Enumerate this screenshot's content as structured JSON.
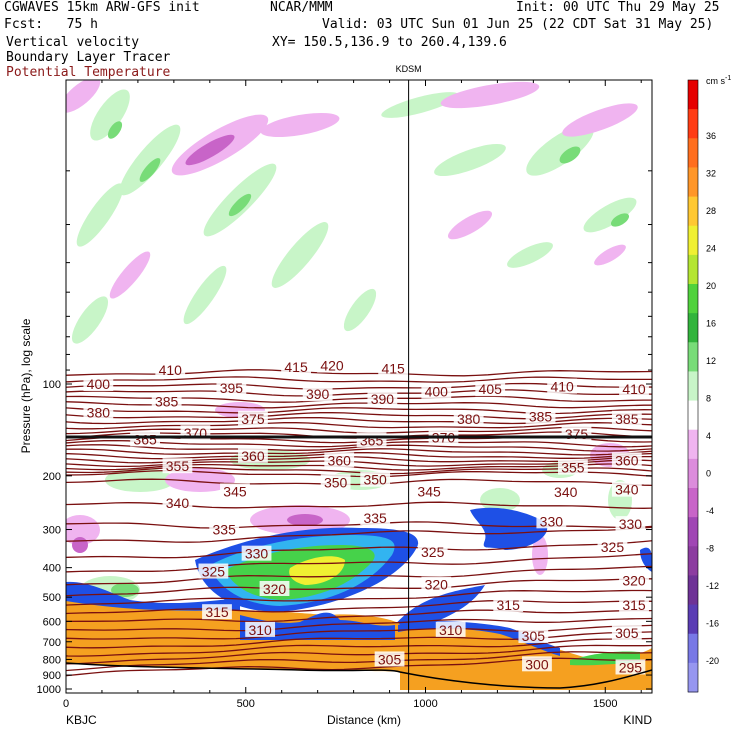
{
  "header": {
    "model": "CGWAVES 15km ARW-GFS init",
    "forecast": "Fcst:   75 h",
    "field1": "Vertical velocity",
    "field2": "Boundary Layer Tracer",
    "field3": "Potential Temperature",
    "center": "NCAR/MMM",
    "init": "Init: 00 UTC Thu 29 May 25",
    "valid": "Valid: 03 UTC Sun 01 Jun 25 (22 CDT Sat 31 May 25)",
    "xy": "XY= 150.5,136.9 to 260.4,139.6"
  },
  "colors": {
    "theta_contour": "#7a1010",
    "field3_text": "#8b1a1a",
    "tracer_orange": "#f5a020",
    "tracer_blue": "#1e50e6",
    "tracer_green": "#46d24a",
    "tracer_yellow": "#f0f032",
    "tracer_cyan": "#32b4f0"
  },
  "chart_data": {
    "type": "heatmap",
    "title": "",
    "xlabel": "Distance (km)",
    "ylabel": "Pressure (hPa), log scale",
    "x_range": [
      0,
      1630
    ],
    "x_ticks": [
      0,
      500,
      1000,
      1500
    ],
    "x_tick_labels": [
      "0",
      "500",
      "1000",
      "1500"
    ],
    "y_scale": "log",
    "y_range": [
      1000,
      20
    ],
    "y_ticks": [
      100,
      200,
      300,
      400,
      500,
      600,
      700,
      800,
      900,
      1000
    ],
    "y_tick_labels": [
      "100",
      "200",
      "300",
      "400",
      "500",
      "600",
      "700",
      "800",
      "900",
      "1000"
    ],
    "station_left": "KBJC",
    "station_right": "KIND",
    "station_mid": "KDSM",
    "station_mid_distance_km": 953,
    "colorbar": {
      "units": "cm s",
      "units_exp": "-1",
      "levels": [
        "36",
        "32",
        "28",
        "24",
        "20",
        "16",
        "12",
        "8",
        "4",
        "0",
        "-4",
        "-8",
        "-12",
        "-16",
        "-20"
      ],
      "colors": [
        "#e60000",
        "#ff3c14",
        "#ff6e1e",
        "#ff9628",
        "#ffc832",
        "#f0f032",
        "#b4e632",
        "#50d23c",
        "#32b43c",
        "#78dc78",
        "#c8f5c8",
        "#ffffff",
        "#f0b4f0",
        "#dc8cdc",
        "#c864c8",
        "#a046b4",
        "#8c3ca0",
        "#6e3296",
        "#5a3cb4",
        "#7878e6",
        "#9696f0"
      ]
    },
    "theta_labels": [
      {
        "text": "410",
        "x": 290,
        "p": 90
      },
      {
        "text": "415",
        "x": 640,
        "p": 88
      },
      {
        "text": "420",
        "x": 740,
        "p": 87
      },
      {
        "text": "415",
        "x": 910,
        "p": 89
      },
      {
        "text": "400",
        "x": 90,
        "p": 100
      },
      {
        "text": "395",
        "x": 460,
        "p": 103
      },
      {
        "text": "390",
        "x": 700,
        "p": 108
      },
      {
        "text": "390",
        "x": 880,
        "p": 112
      },
      {
        "text": "400",
        "x": 1030,
        "p": 106
      },
      {
        "text": "405",
        "x": 1180,
        "p": 104
      },
      {
        "text": "410",
        "x": 1380,
        "p": 102
      },
      {
        "text": "410",
        "x": 1580,
        "p": 104
      },
      {
        "text": "385",
        "x": 280,
        "p": 114
      },
      {
        "text": "380",
        "x": 90,
        "p": 124
      },
      {
        "text": "375",
        "x": 520,
        "p": 130
      },
      {
        "text": "380",
        "x": 1120,
        "p": 130
      },
      {
        "text": "385",
        "x": 1320,
        "p": 128
      },
      {
        "text": "385",
        "x": 1560,
        "p": 130
      },
      {
        "text": "370",
        "x": 360,
        "p": 145
      },
      {
        "text": "375",
        "x": 1420,
        "p": 146
      },
      {
        "text": "365",
        "x": 220,
        "p": 152
      },
      {
        "text": "365",
        "x": 850,
        "p": 153
      },
      {
        "text": "370",
        "x": 1050,
        "p": 150
      },
      {
        "text": "355",
        "x": 310,
        "p": 186
      },
      {
        "text": "360",
        "x": 520,
        "p": 172
      },
      {
        "text": "360",
        "x": 760,
        "p": 178
      },
      {
        "text": "355",
        "x": 1410,
        "p": 188
      },
      {
        "text": "360",
        "x": 1560,
        "p": 178
      },
      {
        "text": "350",
        "x": 750,
        "p": 210
      },
      {
        "text": "350",
        "x": 860,
        "p": 206
      },
      {
        "text": "345",
        "x": 470,
        "p": 225
      },
      {
        "text": "345",
        "x": 1010,
        "p": 225
      },
      {
        "text": "340",
        "x": 310,
        "p": 246
      },
      {
        "text": "340",
        "x": 1390,
        "p": 226
      },
      {
        "text": "340",
        "x": 1560,
        "p": 222
      },
      {
        "text": "335",
        "x": 860,
        "p": 275
      },
      {
        "text": "335",
        "x": 440,
        "p": 300
      },
      {
        "text": "330",
        "x": 1350,
        "p": 282
      },
      {
        "text": "330",
        "x": 1570,
        "p": 288
      },
      {
        "text": "330",
        "x": 530,
        "p": 360
      },
      {
        "text": "325",
        "x": 1020,
        "p": 356
      },
      {
        "text": "325",
        "x": 1520,
        "p": 342
      },
      {
        "text": "325",
        "x": 410,
        "p": 412
      },
      {
        "text": "320",
        "x": 580,
        "p": 470
      },
      {
        "text": "320",
        "x": 1030,
        "p": 455
      },
      {
        "text": "320",
        "x": 1580,
        "p": 440
      },
      {
        "text": "315",
        "x": 420,
        "p": 560
      },
      {
        "text": "315",
        "x": 1230,
        "p": 530
      },
      {
        "text": "315",
        "x": 1580,
        "p": 530
      },
      {
        "text": "310",
        "x": 540,
        "p": 640
      },
      {
        "text": "310",
        "x": 1070,
        "p": 640
      },
      {
        "text": "305",
        "x": 1300,
        "p": 670
      },
      {
        "text": "305",
        "x": 1560,
        "p": 655
      },
      {
        "text": "305",
        "x": 900,
        "p": 800
      },
      {
        "text": "300",
        "x": 1310,
        "p": 830
      },
      {
        "text": "295",
        "x": 1570,
        "p": 850
      }
    ]
  }
}
